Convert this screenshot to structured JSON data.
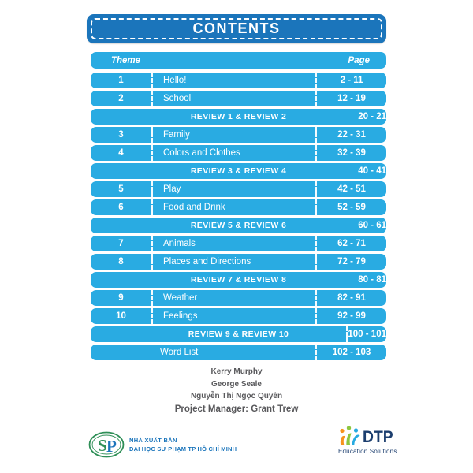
{
  "title": "CONTENTS",
  "table": {
    "header": {
      "theme": "Theme",
      "page": "Page"
    },
    "rows": [
      {
        "type": "theme",
        "num": "1",
        "title": "Hello!",
        "pages": "2 - 11"
      },
      {
        "type": "theme",
        "num": "2",
        "title": "School",
        "pages": "12 - 19"
      },
      {
        "type": "review",
        "title": "REVIEW 1 & REVIEW 2",
        "pages": "20 - 21",
        "page_divider": false
      },
      {
        "type": "theme",
        "num": "3",
        "title": "Family",
        "pages": "22 - 31"
      },
      {
        "type": "theme",
        "num": "4",
        "title": "Colors and Clothes",
        "pages": "32 - 39"
      },
      {
        "type": "review",
        "title": "REVIEW 3 & REVIEW 4",
        "pages": "40 - 41",
        "page_divider": false
      },
      {
        "type": "theme",
        "num": "5",
        "title": "Play",
        "pages": "42 - 51"
      },
      {
        "type": "theme",
        "num": "6",
        "title": "Food and Drink",
        "pages": "52 - 59"
      },
      {
        "type": "review",
        "title": "REVIEW 5 & REVIEW 6",
        "pages": "60 - 61",
        "page_divider": false
      },
      {
        "type": "theme",
        "num": "7",
        "title": "Animals",
        "pages": "62 - 71"
      },
      {
        "type": "theme",
        "num": "8",
        "title": "Places and Directions",
        "pages": "72 - 79"
      },
      {
        "type": "review",
        "title": "REVIEW 7 & REVIEW 8",
        "pages": "80 - 81",
        "page_divider": false
      },
      {
        "type": "theme",
        "num": "9",
        "title": "Weather",
        "pages": "82 - 91"
      },
      {
        "type": "theme",
        "num": "10",
        "title": "Feelings",
        "pages": "92 - 99"
      },
      {
        "type": "review",
        "title": "REVIEW 9 & REVIEW 10",
        "pages": "100 - 101",
        "page_divider": true
      },
      {
        "type": "wordlist",
        "title": "Word List",
        "pages": "102 - 103",
        "page_divider": true
      }
    ]
  },
  "credits": [
    "Kerry Murphy",
    "George Seale",
    "Nguyễn Thị Ngọc Quyên",
    "Project Manager: Grant Trew"
  ],
  "publisher": {
    "logo_text": "SP",
    "line1": "NHÀ XUẤT BẢN",
    "line2": "ĐẠI HỌC SƯ PHẠM TP HỒ CHÍ MINH"
  },
  "dtp": {
    "name": "DTP",
    "tagline": "Education Solutions"
  },
  "colors": {
    "dark-blue": "#1b75bb",
    "row-blue": "#29abe2",
    "credit-gray": "#58585b",
    "pub-blue": "#1b75bb",
    "pub-green": "#2f8f57",
    "dtp-navy": "#1c3e6e",
    "dtp-orange": "#f7941d",
    "dtp-green": "#8dc63f",
    "dtp-cyan": "#27aae1"
  }
}
